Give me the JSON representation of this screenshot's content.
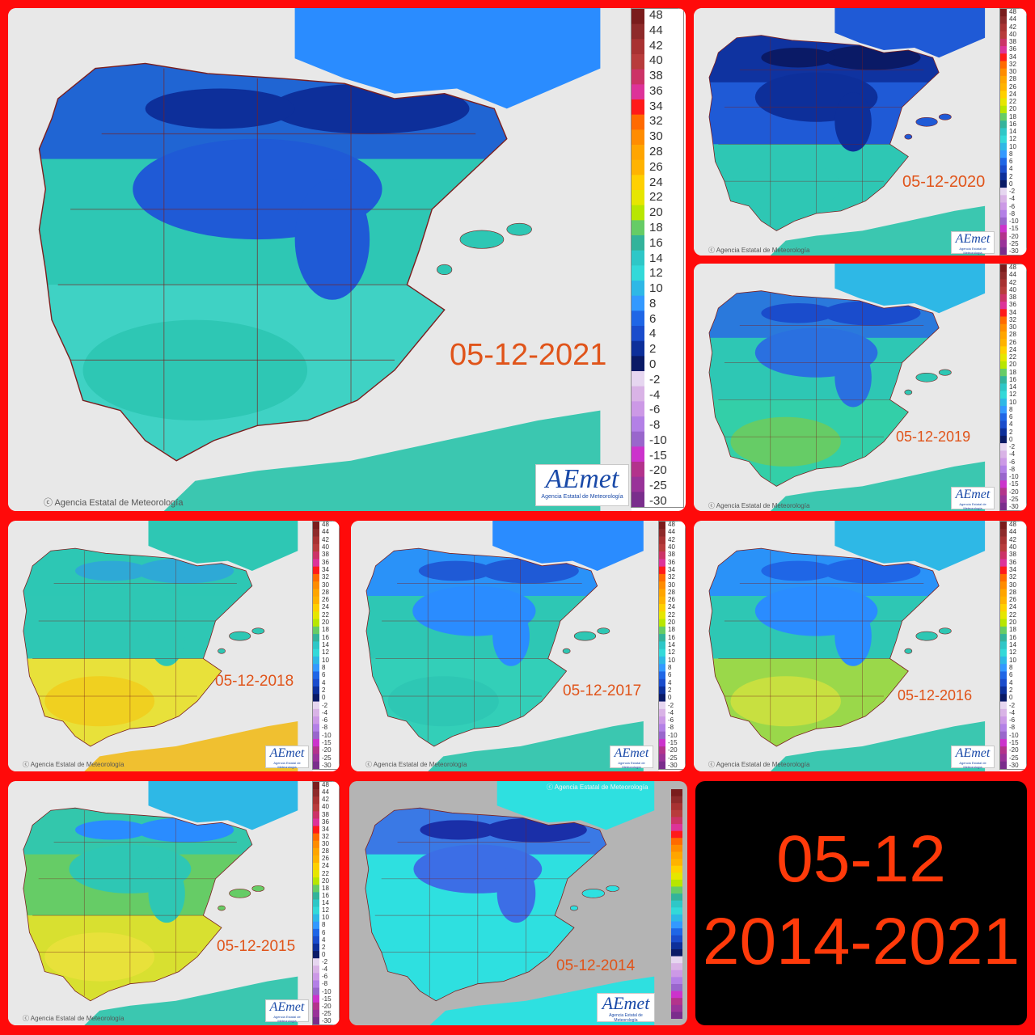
{
  "panels": [
    {
      "id": "p2021",
      "date": "05-12-2021",
      "credit": "Agencia Estatal de Meteorología",
      "theme": "cold"
    },
    {
      "id": "p2020",
      "date": "05-12-2020",
      "credit": "Agencia Estatal de Meteorología",
      "theme": "verycold"
    },
    {
      "id": "p2019",
      "date": "05-12-2019",
      "credit": "Agencia Estatal de Meteorología",
      "theme": "mild"
    },
    {
      "id": "p2018",
      "date": "05-12-2018",
      "credit": "Agencia Estatal de Meteorología",
      "theme": "warm"
    },
    {
      "id": "p2017",
      "date": "05-12-2017",
      "credit": "Agencia Estatal de Meteorología",
      "theme": "cool"
    },
    {
      "id": "p2016",
      "date": "05-12-2016",
      "credit": "Agencia Estatal de Meteorología",
      "theme": "mildwarm"
    },
    {
      "id": "p2015",
      "date": "05-12-2015",
      "credit": "Agencia Estatal de Meteorología",
      "theme": "warm2"
    },
    {
      "id": "p2014",
      "date": "05-12-2014",
      "credit": "Agencia Estatal de Meteorología",
      "theme": "cold2014"
    }
  ],
  "logo": {
    "brand": "AEmet",
    "sub": "Agencia Estatal de Meteorología"
  },
  "scale_values": [
    "48",
    "44",
    "42",
    "40",
    "38",
    "36",
    "34",
    "32",
    "30",
    "28",
    "26",
    "24",
    "22",
    "20",
    "18",
    "16",
    "14",
    "12",
    "10",
    "8",
    "6",
    "4",
    "2",
    "0",
    "-2",
    "-4",
    "-6",
    "-8",
    "-10",
    "-15",
    "-20",
    "-25",
    "-30"
  ],
  "summary": {
    "line1": "05-12",
    "line2": "2014-2021"
  },
  "colors": {
    "background_frame": "#ff0a0a",
    "date_label": "#e0541a",
    "summary_text": "#ff3a0a",
    "land_mild": "#2ec7b4",
    "land_cold": "#1f5ad6",
    "land_verycold": "#0d2f9a",
    "land_warm": "#e8e13a",
    "sea": "#e6e6e6",
    "border_lines": "#7a1f1f"
  }
}
